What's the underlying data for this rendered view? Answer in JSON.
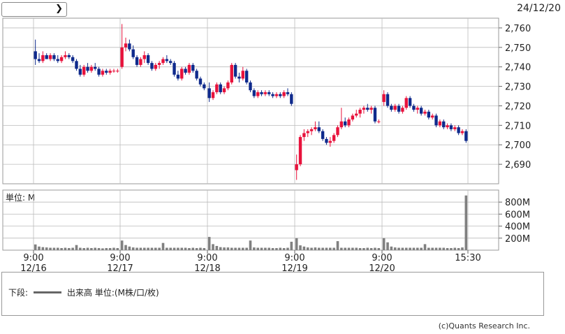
{
  "header": {
    "selector_value": "",
    "date_stamp": "24/12/20"
  },
  "legend": {
    "label_prefix": "下段:",
    "label_series": "出来高 単位:(M株/口/枚)"
  },
  "footer": {
    "copyright": "(c)Quants Research Inc."
  },
  "colors": {
    "up": "#e8123c",
    "down": "#0f2a8c",
    "volume": "#808080",
    "grid": "#bbbbbb"
  },
  "chart_data": [
    {
      "type": "candlestick",
      "title": "",
      "ylim": [
        2680,
        2765
      ],
      "yticks": [
        2690,
        2700,
        2710,
        2720,
        2730,
        2740,
        2750,
        2760
      ],
      "ytick_labels": [
        "2,690",
        "2,700",
        "2,710",
        "2,720",
        "2,730",
        "2,740",
        "2,750",
        "2,760"
      ],
      "grid": true,
      "days": [
        {
          "date": "12/16",
          "time": "9:00",
          "ohlc": [
            [
              2748,
              2754,
              2741,
              2744
            ],
            [
              2744,
              2747,
              2742,
              2743
            ],
            [
              2743,
              2748,
              2742,
              2746
            ],
            [
              2746,
              2747,
              2744,
              2744
            ],
            [
              2744,
              2747,
              2743,
              2746
            ],
            [
              2746,
              2747,
              2743,
              2744
            ],
            [
              2744,
              2746,
              2742,
              2743
            ],
            [
              2743,
              2746,
              2742,
              2745
            ],
            [
              2745,
              2748,
              2744,
              2746
            ],
            [
              2746,
              2747,
              2744,
              2745
            ],
            [
              2745,
              2746,
              2742,
              2743
            ],
            [
              2743,
              2744,
              2738,
              2739
            ],
            [
              2739,
              2741,
              2735,
              2736
            ],
            [
              2736,
              2741,
              2735,
              2740
            ],
            [
              2740,
              2742,
              2737,
              2738
            ],
            [
              2738,
              2741,
              2737,
              2740
            ],
            [
              2740,
              2742,
              2738,
              2739
            ],
            [
              2739,
              2740,
              2735,
              2736
            ],
            [
              2736,
              2739,
              2735,
              2738
            ],
            [
              2738,
              2739,
              2736,
              2737
            ],
            [
              2737,
              2739,
              2736,
              2738
            ],
            [
              2738,
              2739,
              2737,
              2738
            ],
            [
              2738,
              2739,
              2737,
              2738
            ]
          ]
        },
        {
          "date": "12/17",
          "time": "9:00",
          "ohlc": [
            [
              2740,
              2762,
              2739,
              2750
            ],
            [
              2750,
              2755,
              2748,
              2752
            ],
            [
              2752,
              2754,
              2748,
              2749
            ],
            [
              2749,
              2751,
              2744,
              2745
            ],
            [
              2745,
              2746,
              2740,
              2741
            ],
            [
              2741,
              2745,
              2740,
              2744
            ],
            [
              2744,
              2748,
              2742,
              2746
            ],
            [
              2746,
              2747,
              2741,
              2742
            ],
            [
              2742,
              2743,
              2738,
              2739
            ],
            [
              2739,
              2742,
              2738,
              2741
            ],
            [
              2741,
              2743,
              2739,
              2742
            ],
            [
              2742,
              2745,
              2741,
              2744
            ],
            [
              2744,
              2746,
              2742,
              2743
            ],
            [
              2743,
              2744,
              2741,
              2742
            ],
            [
              2742,
              2743,
              2735,
              2736
            ],
            [
              2736,
              2738,
              2733,
              2734
            ],
            [
              2734,
              2740,
              2733,
              2739
            ],
            [
              2739,
              2740,
              2736,
              2737
            ],
            [
              2737,
              2742,
              2736,
              2741
            ],
            [
              2741,
              2742,
              2737,
              2738
            ],
            [
              2738,
              2739,
              2733,
              2734
            ],
            [
              2734,
              2735,
              2730,
              2731
            ],
            [
              2731,
              2732,
              2728,
              2729
            ]
          ]
        },
        {
          "date": "12/18",
          "time": "9:00",
          "ohlc": [
            [
              2729,
              2732,
              2722,
              2724
            ],
            [
              2724,
              2728,
              2723,
              2727
            ],
            [
              2727,
              2732,
              2726,
              2731
            ],
            [
              2731,
              2732,
              2726,
              2727
            ],
            [
              2727,
              2730,
              2726,
              2729
            ],
            [
              2729,
              2733,
              2728,
              2732
            ],
            [
              2732,
              2742,
              2731,
              2741
            ],
            [
              2741,
              2742,
              2734,
              2735
            ],
            [
              2735,
              2737,
              2732,
              2734
            ],
            [
              2734,
              2740,
              2733,
              2738
            ],
            [
              2738,
              2739,
              2731,
              2732
            ],
            [
              2732,
              2733,
              2727,
              2728
            ],
            [
              2728,
              2729,
              2724,
              2725
            ],
            [
              2725,
              2728,
              2724,
              2727
            ],
            [
              2727,
              2728,
              2725,
              2726
            ],
            [
              2726,
              2728,
              2725,
              2727
            ],
            [
              2727,
              2728,
              2725,
              2726
            ],
            [
              2726,
              2727,
              2724,
              2725
            ],
            [
              2725,
              2727,
              2724,
              2726
            ],
            [
              2726,
              2727,
              2724,
              2725
            ],
            [
              2725,
              2728,
              2724,
              2727
            ],
            [
              2727,
              2729,
              2725,
              2726
            ],
            [
              2726,
              2727,
              2720,
              2721
            ]
          ]
        },
        {
          "date": "12/19",
          "time": "9:00",
          "ohlc": [
            [
              2687,
              2695,
              2682,
              2690
            ],
            [
              2690,
              2705,
              2689,
              2704
            ],
            [
              2704,
              2708,
              2702,
              2706
            ],
            [
              2706,
              2708,
              2704,
              2707
            ],
            [
              2707,
              2709,
              2705,
              2708
            ],
            [
              2708,
              2712,
              2707,
              2709
            ],
            [
              2709,
              2712,
              2706,
              2707
            ],
            [
              2707,
              2708,
              2702,
              2703
            ],
            [
              2703,
              2704,
              2700,
              2701
            ],
            [
              2701,
              2704,
              2699,
              2702
            ],
            [
              2702,
              2706,
              2701,
              2705
            ],
            [
              2705,
              2710,
              2704,
              2709
            ],
            [
              2709,
              2719,
              2708,
              2712
            ],
            [
              2712,
              2714,
              2709,
              2710
            ],
            [
              2710,
              2714,
              2709,
              2713
            ],
            [
              2713,
              2716,
              2712,
              2715
            ],
            [
              2715,
              2718,
              2714,
              2716
            ],
            [
              2716,
              2719,
              2714,
              2718
            ],
            [
              2718,
              2720,
              2716,
              2719
            ],
            [
              2719,
              2721,
              2717,
              2718
            ],
            [
              2718,
              2720,
              2716,
              2719
            ],
            [
              2719,
              2720,
              2711,
              2712
            ],
            [
              2712,
              2713,
              2711,
              2712
            ]
          ]
        },
        {
          "date": "12/20",
          "time": "9:00",
          "ohlc": [
            [
              2722,
              2728,
              2720,
              2726
            ],
            [
              2726,
              2727,
              2719,
              2720
            ],
            [
              2720,
              2721,
              2717,
              2718
            ],
            [
              2718,
              2721,
              2717,
              2720
            ],
            [
              2720,
              2721,
              2716,
              2717
            ],
            [
              2717,
              2720,
              2716,
              2719
            ],
            [
              2719,
              2725,
              2718,
              2724
            ],
            [
              2724,
              2725,
              2719,
              2720
            ],
            [
              2720,
              2721,
              2717,
              2718
            ],
            [
              2718,
              2720,
              2716,
              2719
            ],
            [
              2719,
              2720,
              2715,
              2716
            ],
            [
              2716,
              2718,
              2715,
              2717
            ],
            [
              2717,
              2718,
              2713,
              2714
            ],
            [
              2714,
              2716,
              2713,
              2715
            ],
            [
              2715,
              2716,
              2709,
              2710
            ],
            [
              2710,
              2713,
              2709,
              2712
            ],
            [
              2712,
              2713,
              2708,
              2709
            ],
            [
              2709,
              2711,
              2708,
              2710
            ],
            [
              2710,
              2711,
              2707,
              2708
            ],
            [
              2708,
              2710,
              2707,
              2709
            ],
            [
              2709,
              2710,
              2705,
              2706
            ],
            [
              2706,
              2708,
              2705,
              2707
            ],
            [
              2707,
              2708,
              2701,
              2702
            ]
          ]
        }
      ]
    },
    {
      "type": "bar",
      "title": "",
      "unit_label": "単位: M",
      "ylim": [
        0,
        1000
      ],
      "yticks": [
        200,
        400,
        600,
        800
      ],
      "ytick_labels": [
        "200M",
        "400M",
        "600M",
        "800M"
      ],
      "x_tick_times": [
        "9:00",
        "9:00",
        "9:00",
        "9:00",
        "9:00",
        "15:30"
      ],
      "x_tick_dates": [
        "12/16",
        "12/17",
        "12/18",
        "12/19",
        "12/20",
        ""
      ],
      "days": [
        [
          95,
          60,
          50,
          45,
          40,
          40,
          40,
          35,
          40,
          35,
          40,
          85,
          40,
          35,
          40,
          35,
          40,
          35,
          30,
          35,
          35,
          40,
          35
        ],
        [
          160,
          85,
          60,
          45,
          40,
          40,
          40,
          40,
          40,
          40,
          40,
          120,
          40,
          40,
          40,
          40,
          40,
          40,
          35,
          40,
          35,
          40,
          35
        ],
        [
          220,
          100,
          70,
          50,
          45,
          45,
          40,
          40,
          40,
          40,
          40,
          160,
          45,
          40,
          40,
          40,
          40,
          35,
          35,
          40,
          35,
          40,
          140
        ],
        [
          200,
          80,
          60,
          45,
          40,
          45,
          40,
          40,
          40,
          40,
          40,
          150,
          40,
          40,
          40,
          40,
          40,
          35,
          35,
          40,
          35,
          40,
          35
        ],
        [
          200,
          130,
          60,
          45,
          40,
          40,
          40,
          40,
          40,
          40,
          40,
          100,
          40,
          40,
          40,
          40,
          40,
          35,
          35,
          40,
          35,
          45,
          910
        ]
      ]
    }
  ]
}
